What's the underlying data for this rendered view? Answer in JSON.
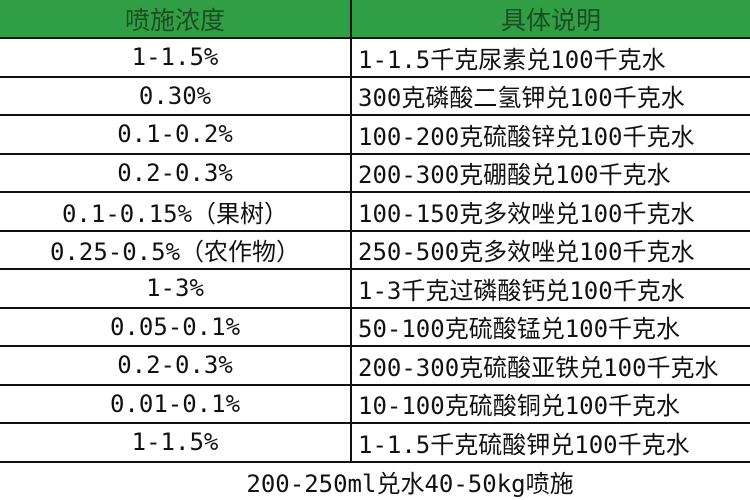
{
  "header": {
    "col1": "喷施浓度",
    "col2": "具体说明"
  },
  "rows": [
    {
      "concentration": "1-1.5%",
      "description": "1-1.5千克尿素兑100千克水"
    },
    {
      "concentration": "0.30%",
      "description": "300克磷酸二氢钾兑100千克水"
    },
    {
      "concentration": "0.1-0.2%",
      "description": "100-200克硫酸锌兑100千克水"
    },
    {
      "concentration": "0.2-0.3%",
      "description": "200-300克硼酸兑100千克水"
    },
    {
      "concentration": "0.1-0.15%（果树）",
      "description": "100-150克多效唑兑100千克水"
    },
    {
      "concentration": "0.25-0.5%（农作物）",
      "description": "250-500克多效唑兑100千克水"
    },
    {
      "concentration": "1-3%",
      "description": "1-3千克过磷酸钙兑100千克水"
    },
    {
      "concentration": "0.05-0.1%",
      "description": "50-100克硫酸锰兑100千克水"
    },
    {
      "concentration": "0.2-0.3%",
      "description": "200-300克硫酸亚铁兑100千克水"
    },
    {
      "concentration": "0.01-0.1%",
      "description": "10-100克硫酸铜兑100千克水"
    },
    {
      "concentration": "1-1.5%",
      "description": "1-1.5千克硫酸钾兑100千克水"
    }
  ],
  "footer": "200-250ml兑水40-50kg喷施",
  "colors": {
    "header_bg": "#2f9e44",
    "header_text": "#1f4d22"
  }
}
